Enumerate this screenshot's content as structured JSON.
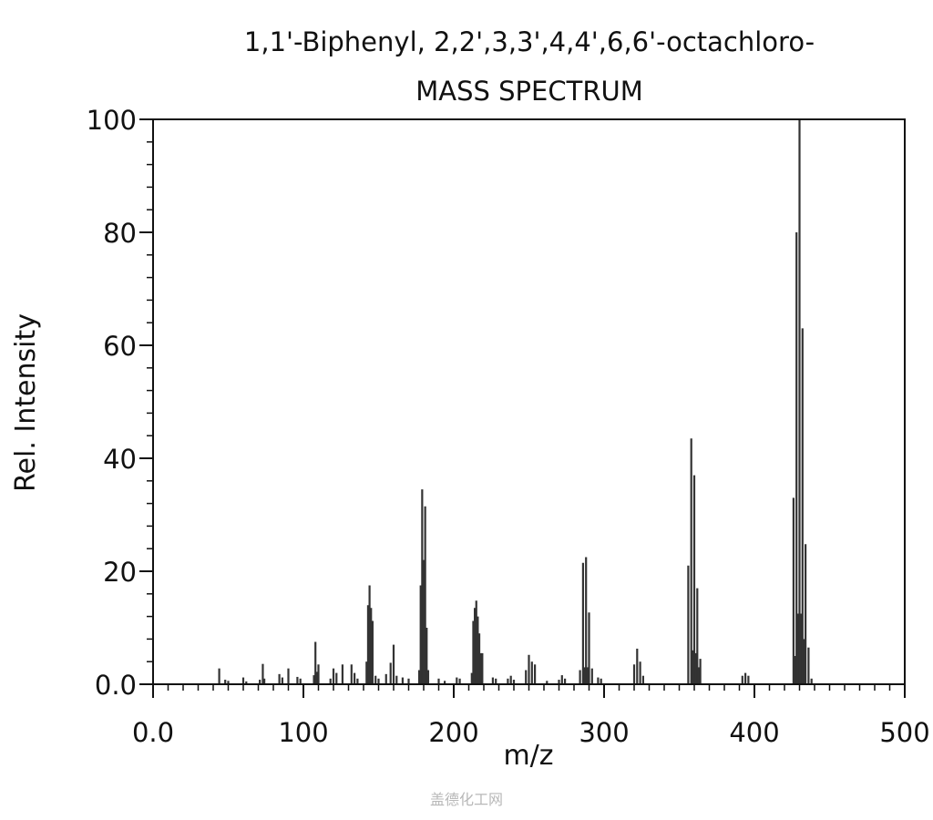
{
  "chart_data": {
    "type": "bar",
    "title": "1,1'-Biphenyl, 2,2',3,3',4,4',6,6'-octachloro-",
    "subtitle": "MASS SPECTRUM",
    "xlabel": "m/z",
    "ylabel": "Rel. Intensity",
    "xlim": [
      0,
      500
    ],
    "ylim": [
      0,
      100
    ],
    "x_ticks": [
      0,
      100,
      200,
      300,
      400,
      500
    ],
    "x_tick_labels": [
      "0.0",
      "100",
      "200",
      "300",
      "400",
      "500"
    ],
    "y_ticks": [
      0,
      20,
      40,
      60,
      80,
      100
    ],
    "y_tick_labels": [
      "0.0",
      "20",
      "40",
      "60",
      "80",
      "100"
    ],
    "grid": false,
    "bar_color": "#333333",
    "peaks": [
      {
        "x": 44,
        "y": 2.8
      },
      {
        "x": 48,
        "y": 0.8
      },
      {
        "x": 50,
        "y": 0.6
      },
      {
        "x": 60,
        "y": 1.2
      },
      {
        "x": 62,
        "y": 0.5
      },
      {
        "x": 71,
        "y": 0.8
      },
      {
        "x": 73,
        "y": 3.6
      },
      {
        "x": 74,
        "y": 1.0
      },
      {
        "x": 84,
        "y": 1.8
      },
      {
        "x": 86,
        "y": 1.2
      },
      {
        "x": 90,
        "y": 2.8
      },
      {
        "x": 96,
        "y": 1.3
      },
      {
        "x": 98,
        "y": 1.0
      },
      {
        "x": 107,
        "y": 1.6
      },
      {
        "x": 108,
        "y": 7.5
      },
      {
        "x": 109,
        "y": 2.2
      },
      {
        "x": 110,
        "y": 3.5
      },
      {
        "x": 118,
        "y": 1.0
      },
      {
        "x": 120,
        "y": 2.8
      },
      {
        "x": 122,
        "y": 2.0
      },
      {
        "x": 126,
        "y": 3.5
      },
      {
        "x": 132,
        "y": 3.5
      },
      {
        "x": 134,
        "y": 2.0
      },
      {
        "x": 136,
        "y": 1.0
      },
      {
        "x": 142,
        "y": 4.0
      },
      {
        "x": 143,
        "y": 14.0
      },
      {
        "x": 144,
        "y": 17.5
      },
      {
        "x": 145,
        "y": 13.5
      },
      {
        "x": 146,
        "y": 11.2
      },
      {
        "x": 148,
        "y": 1.5
      },
      {
        "x": 150,
        "y": 1.0
      },
      {
        "x": 155,
        "y": 1.8
      },
      {
        "x": 158,
        "y": 3.8
      },
      {
        "x": 160,
        "y": 7.0
      },
      {
        "x": 162,
        "y": 1.5
      },
      {
        "x": 166,
        "y": 1.2
      },
      {
        "x": 170,
        "y": 1.0
      },
      {
        "x": 177,
        "y": 2.5
      },
      {
        "x": 178,
        "y": 17.5
      },
      {
        "x": 179,
        "y": 34.5
      },
      {
        "x": 180,
        "y": 22.0
      },
      {
        "x": 181,
        "y": 31.5
      },
      {
        "x": 182,
        "y": 10.0
      },
      {
        "x": 183,
        "y": 2.5
      },
      {
        "x": 190,
        "y": 1.0
      },
      {
        "x": 194,
        "y": 0.6
      },
      {
        "x": 202,
        "y": 1.2
      },
      {
        "x": 204,
        "y": 1.0
      },
      {
        "x": 212,
        "y": 2.0
      },
      {
        "x": 213,
        "y": 11.2
      },
      {
        "x": 214,
        "y": 13.5
      },
      {
        "x": 215,
        "y": 14.8
      },
      {
        "x": 216,
        "y": 12.0
      },
      {
        "x": 217,
        "y": 9.0
      },
      {
        "x": 218,
        "y": 5.5
      },
      {
        "x": 219,
        "y": 5.5
      },
      {
        "x": 226,
        "y": 1.2
      },
      {
        "x": 228,
        "y": 1.0
      },
      {
        "x": 236,
        "y": 1.0
      },
      {
        "x": 238,
        "y": 1.5
      },
      {
        "x": 240,
        "y": 0.8
      },
      {
        "x": 248,
        "y": 2.5
      },
      {
        "x": 250,
        "y": 5.2
      },
      {
        "x": 252,
        "y": 4.0
      },
      {
        "x": 254,
        "y": 3.5
      },
      {
        "x": 262,
        "y": 0.6
      },
      {
        "x": 270,
        "y": 0.8
      },
      {
        "x": 272,
        "y": 1.6
      },
      {
        "x": 274,
        "y": 1.0
      },
      {
        "x": 284,
        "y": 2.5
      },
      {
        "x": 286,
        "y": 21.5
      },
      {
        "x": 287,
        "y": 3.0
      },
      {
        "x": 288,
        "y": 22.5
      },
      {
        "x": 289,
        "y": 3.0
      },
      {
        "x": 290,
        "y": 12.7
      },
      {
        "x": 292,
        "y": 2.8
      },
      {
        "x": 296,
        "y": 1.2
      },
      {
        "x": 298,
        "y": 1.0
      },
      {
        "x": 320,
        "y": 3.5
      },
      {
        "x": 322,
        "y": 6.3
      },
      {
        "x": 324,
        "y": 4.0
      },
      {
        "x": 326,
        "y": 1.5
      },
      {
        "x": 356,
        "y": 21.0
      },
      {
        "x": 358,
        "y": 43.5
      },
      {
        "x": 359,
        "y": 6.0
      },
      {
        "x": 360,
        "y": 37.0
      },
      {
        "x": 361,
        "y": 5.5
      },
      {
        "x": 362,
        "y": 17.0
      },
      {
        "x": 363,
        "y": 3.0
      },
      {
        "x": 364,
        "y": 4.5
      },
      {
        "x": 392,
        "y": 1.5
      },
      {
        "x": 394,
        "y": 2.0
      },
      {
        "x": 396,
        "y": 1.5
      },
      {
        "x": 426,
        "y": 33.0
      },
      {
        "x": 427,
        "y": 5.0
      },
      {
        "x": 428,
        "y": 80.0
      },
      {
        "x": 429,
        "y": 12.5
      },
      {
        "x": 430,
        "y": 100.0
      },
      {
        "x": 431,
        "y": 12.5
      },
      {
        "x": 432,
        "y": 63.0
      },
      {
        "x": 433,
        "y": 8.0
      },
      {
        "x": 434,
        "y": 24.8
      },
      {
        "x": 436,
        "y": 6.5
      },
      {
        "x": 438,
        "y": 1.0
      }
    ]
  },
  "watermark": {
    "text": "盖德化工网"
  }
}
